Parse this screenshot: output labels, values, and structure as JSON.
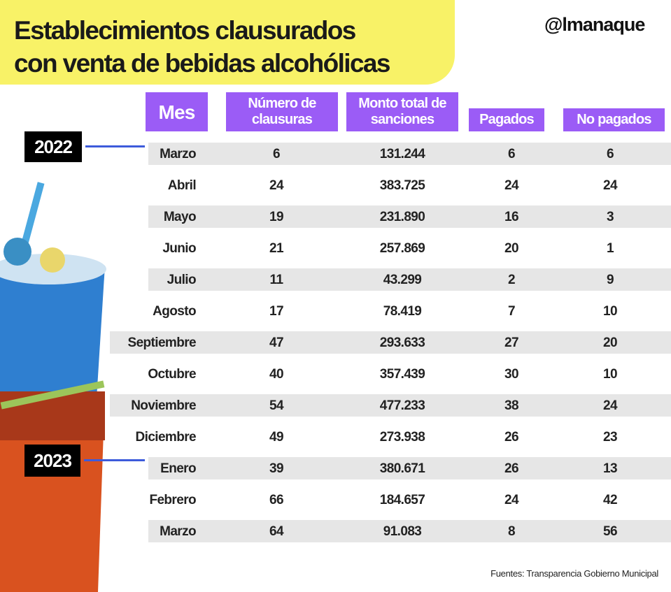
{
  "header": {
    "title_line1": "Establecimientos clausurados",
    "title_line2": "con venta de bebidas alcohólicas",
    "logo": "@lmanaque"
  },
  "colors": {
    "banner": "#f8f267",
    "header_cells": "#9b5cf6",
    "stripe": "#e6e6e6",
    "year_line": "#3d5bdb"
  },
  "chart_data": {
    "type": "table",
    "columns": [
      "Mes",
      "Número de clausuras",
      "Monto total de sanciones",
      "Pagados",
      "No pagados"
    ],
    "year_labels": [
      {
        "year": "2022",
        "starts_at_row": 0
      },
      {
        "year": "2023",
        "starts_at_row": 10
      }
    ],
    "rows": [
      [
        "Marzo",
        "6",
        "131.244",
        "6",
        "6"
      ],
      [
        "Abril",
        "24",
        "383.725",
        "24",
        "24"
      ],
      [
        "Mayo",
        "19",
        "231.890",
        "16",
        "3"
      ],
      [
        "Junio",
        "21",
        "257.869",
        "20",
        "1"
      ],
      [
        "Julio",
        "11",
        "43.299",
        "2",
        "9"
      ],
      [
        "Agosto",
        "17",
        "78.419",
        "7",
        "10"
      ],
      [
        "Septiembre",
        "47",
        "293.633",
        "27",
        "20"
      ],
      [
        "Octubre",
        "40",
        "357.439",
        "30",
        "10"
      ],
      [
        "Noviembre",
        "54",
        "477.233",
        "38",
        "24"
      ],
      [
        "Diciembre",
        "49",
        "273.938",
        "26",
        "23"
      ],
      [
        "Enero",
        "39",
        "380.671",
        "26",
        "13"
      ],
      [
        "Febrero",
        "66",
        "184.657",
        "24",
        "42"
      ],
      [
        "Marzo",
        "64",
        "91.083",
        "8",
        "56"
      ]
    ]
  },
  "footer": {
    "source": "Fuentes: Transparencia Gobierno Municipal"
  }
}
